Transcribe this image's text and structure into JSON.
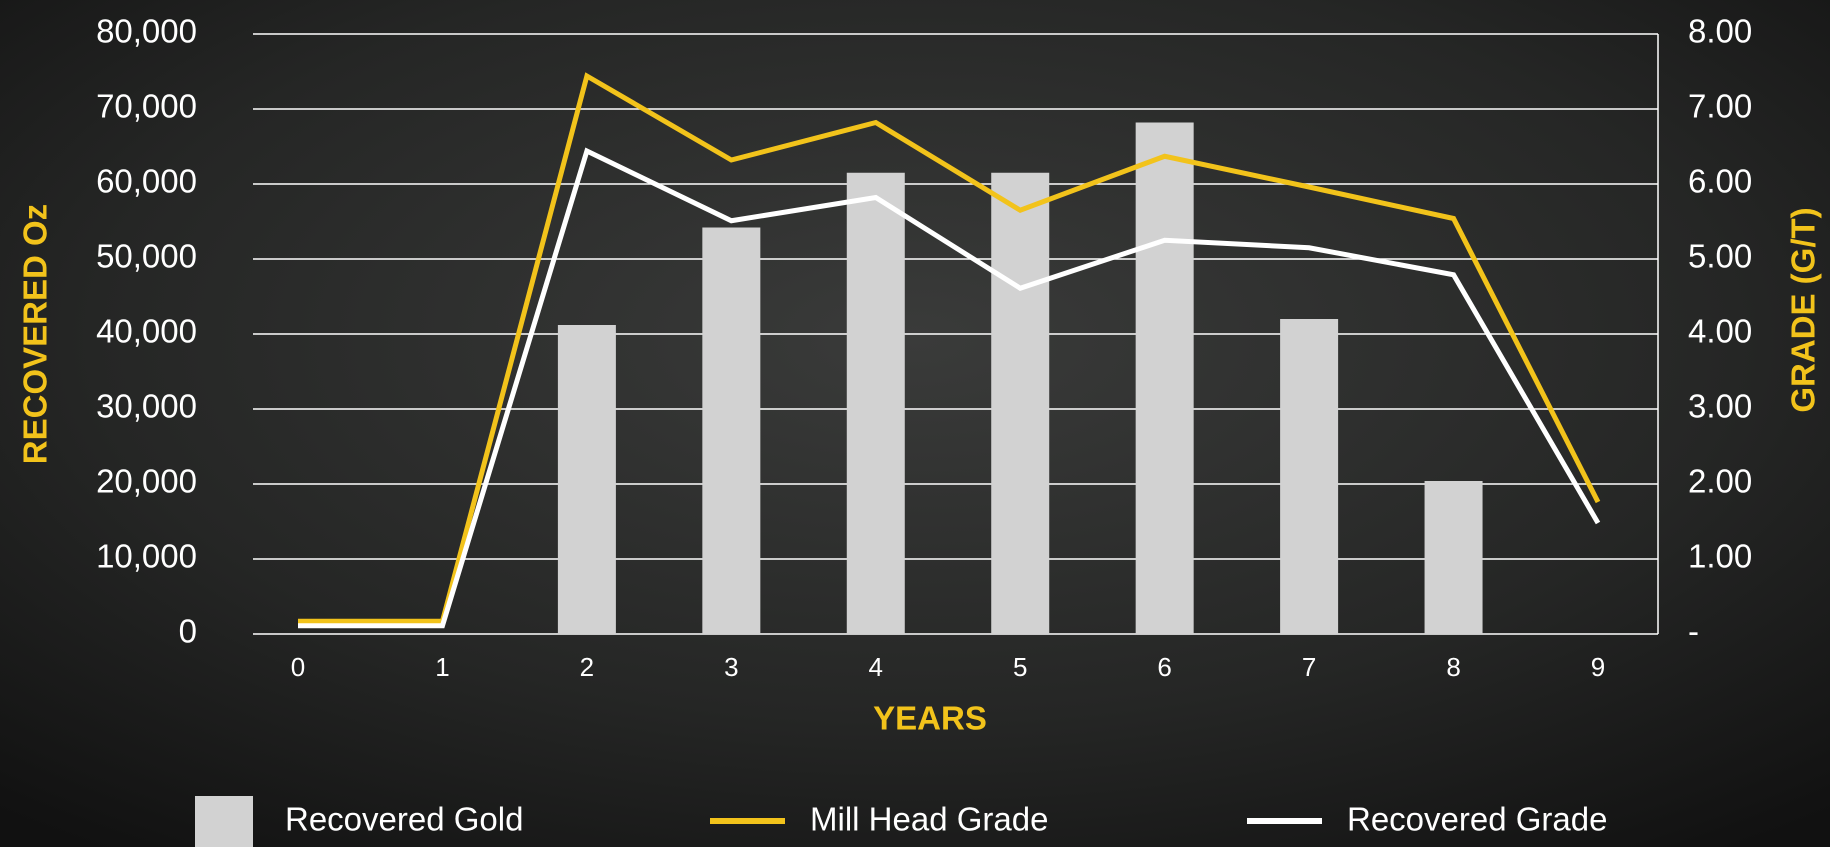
{
  "chart_data": {
    "type": "bar-line",
    "categories": [
      "0",
      "1",
      "2",
      "3",
      "4",
      "5",
      "6",
      "7",
      "8",
      "9"
    ],
    "series": [
      {
        "name": "Recovered Gold",
        "type": "bar",
        "color": "#d2d2d2",
        "axis": "y",
        "values": [
          0,
          0,
          41200,
          54200,
          61500,
          61500,
          68200,
          42000,
          20400,
          0
        ]
      },
      {
        "name": "Mill Head Grade",
        "type": "line",
        "color": "#f2c31b",
        "axis": "y2",
        "values": [
          0.17,
          0.17,
          7.44,
          6.32,
          6.82,
          5.65,
          6.37,
          5.96,
          5.54,
          1.76
        ]
      },
      {
        "name": "Recovered Grade",
        "type": "line",
        "color": "#ffffff",
        "axis": "y2",
        "values": [
          0.11,
          0.11,
          6.44,
          5.51,
          5.82,
          4.61,
          5.25,
          5.15,
          4.79,
          1.48
        ]
      }
    ],
    "xlabel": "YEARS",
    "ylabel": "RECOVERED  Oz",
    "y2label": "GRADE (G/T)",
    "ylim": [
      0,
      80000
    ],
    "yticks": [
      0,
      {
        "value": 10000,
        "label": "10,000"
      },
      {
        "value": 20000,
        "label": "20,000"
      },
      {
        "value": 30000,
        "label": "30,000"
      },
      {
        "value": 40000,
        "label": "40,000"
      },
      {
        "value": 50000,
        "label": "50,000"
      },
      {
        "value": 60000,
        "label": "60,000"
      },
      {
        "value": 70000,
        "label": "70,000"
      },
      {
        "value": 80000,
        "label": "80,000"
      }
    ],
    "y2lim": [
      0,
      8
    ],
    "y2ticks": [
      {
        "value": 0,
        "label": "-"
      },
      {
        "value": 1,
        "label": "1.00"
      },
      {
        "value": 2,
        "label": "2.00"
      },
      {
        "value": 3,
        "label": "3.00"
      },
      {
        "value": 4,
        "label": "4.00"
      },
      {
        "value": 5,
        "label": "5.00"
      },
      {
        "value": 6,
        "label": "6.00"
      },
      {
        "value": 7,
        "label": "7.00"
      },
      {
        "value": 8,
        "label": "8.00"
      }
    ],
    "grid": true,
    "axis_label_color": "#f2c31b"
  }
}
